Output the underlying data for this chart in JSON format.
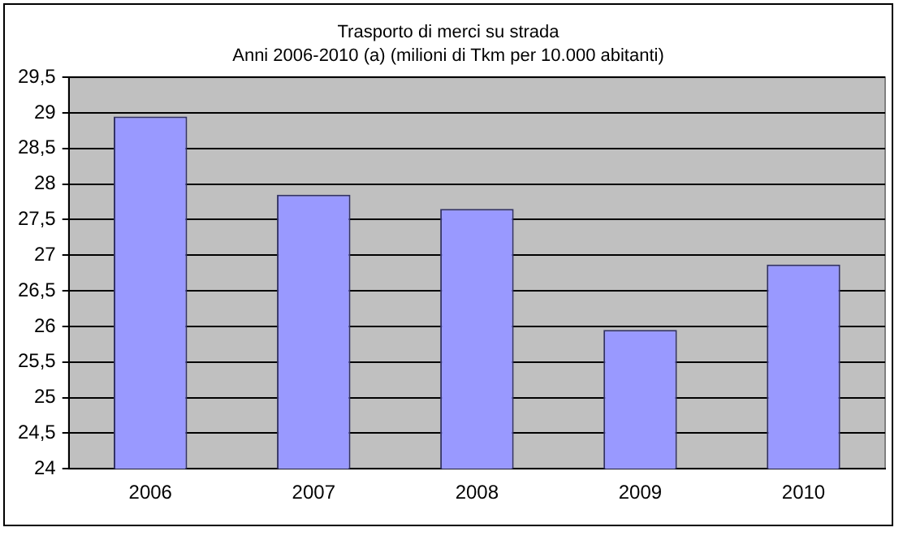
{
  "chart_data": {
    "type": "bar",
    "title": "Trasporto di merci su strada",
    "subtitle": "Anni 2006-2010 (a) (milioni di Tkm per 10.000 abitanti)",
    "categories": [
      "2006",
      "2007",
      "2008",
      "2009",
      "2010"
    ],
    "values": [
      28.95,
      27.85,
      27.65,
      25.95,
      26.87
    ],
    "color": "#9999ff",
    "ylim": [
      24,
      29.5
    ],
    "yticks": [
      24,
      {
        "value": 24.5,
        "label": "24,5"
      },
      25,
      {
        "value": 25.5,
        "label": "25,5"
      },
      26,
      {
        "value": 26.5,
        "label": "26,5"
      },
      27,
      {
        "value": 27.5,
        "label": "27,5"
      },
      28,
      {
        "value": 28.5,
        "label": "28,5"
      },
      29,
      {
        "value": 29.5,
        "label": "29,5"
      }
    ],
    "grid": "y",
    "legend": false
  }
}
